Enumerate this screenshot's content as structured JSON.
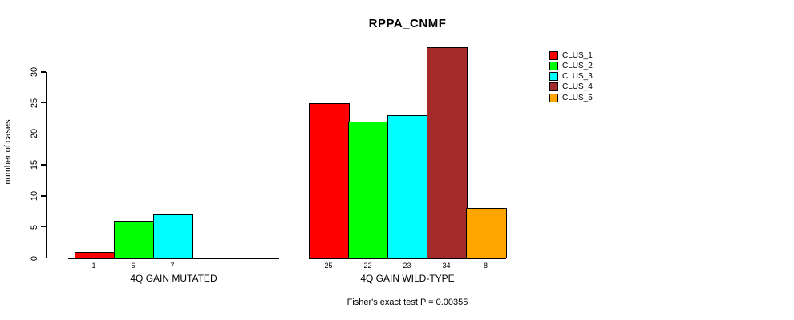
{
  "chart_data": {
    "type": "bar",
    "title": "RPPA_CNMF",
    "ylabel": "number of cases",
    "yticks": [
      0,
      5,
      10,
      15,
      20,
      25,
      30
    ],
    "ylim": [
      0,
      34.5
    ],
    "grid": false,
    "legend_position": "right",
    "groups": [
      {
        "label": "4Q GAIN MUTATED",
        "bars": [
          {
            "cluster": "CLUS_1",
            "value": 1,
            "color": "#FF0000"
          },
          {
            "cluster": "CLUS_2",
            "value": 6,
            "color": "#00FF00"
          },
          {
            "cluster": "CLUS_3",
            "value": 7,
            "color": "#00FFFF"
          }
        ]
      },
      {
        "label": "4Q GAIN WILD-TYPE",
        "bars": [
          {
            "cluster": "CLUS_1",
            "value": 25,
            "color": "#FF0000"
          },
          {
            "cluster": "CLUS_2",
            "value": 22,
            "color": "#00FF00"
          },
          {
            "cluster": "CLUS_3",
            "value": 23,
            "color": "#00FFFF"
          },
          {
            "cluster": "CLUS_4",
            "value": 34,
            "color": "#A52A2A"
          },
          {
            "cluster": "CLUS_5",
            "value": 8,
            "color": "#FFA500"
          }
        ]
      }
    ],
    "legend": [
      {
        "label": "CLUS_1",
        "color": "#FF0000"
      },
      {
        "label": "CLUS_2",
        "color": "#00FF00"
      },
      {
        "label": "CLUS_3",
        "color": "#00FFFF"
      },
      {
        "label": "CLUS_4",
        "color": "#A52A2A"
      },
      {
        "label": "CLUS_5",
        "color": "#FFA500"
      }
    ],
    "footnote": "Fisher's exact test P = 0.00355"
  }
}
